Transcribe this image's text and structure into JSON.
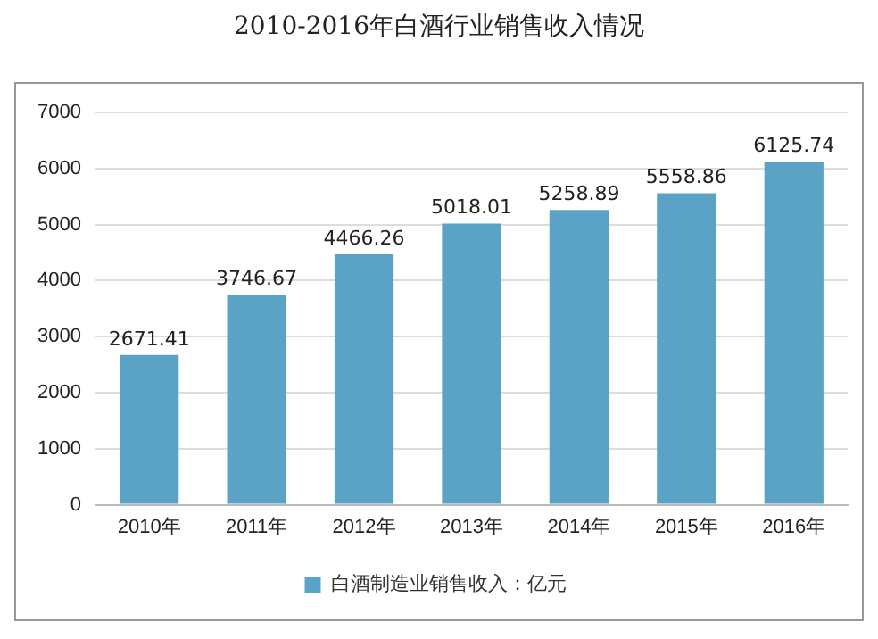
{
  "chart_data": {
    "type": "bar",
    "title": "2010-2016年白酒行业销售收入情况",
    "categories": [
      "2010年",
      "2011年",
      "2012年",
      "2013年",
      "2014年",
      "2015年",
      "2016年"
    ],
    "series": [
      {
        "name": "白酒制造业销售收入：亿元",
        "color": "#5ba3c6",
        "values": [
          2671.41,
          3746.67,
          4466.26,
          5018.01,
          5258.89,
          5558.86,
          6125.74
        ]
      }
    ],
    "ylim": [
      0,
      7000
    ],
    "yticks": [
      0,
      1000,
      2000,
      3000,
      4000,
      5000,
      6000,
      7000
    ],
    "grid": "y",
    "legend": "bottom",
    "data_labels": true
  }
}
